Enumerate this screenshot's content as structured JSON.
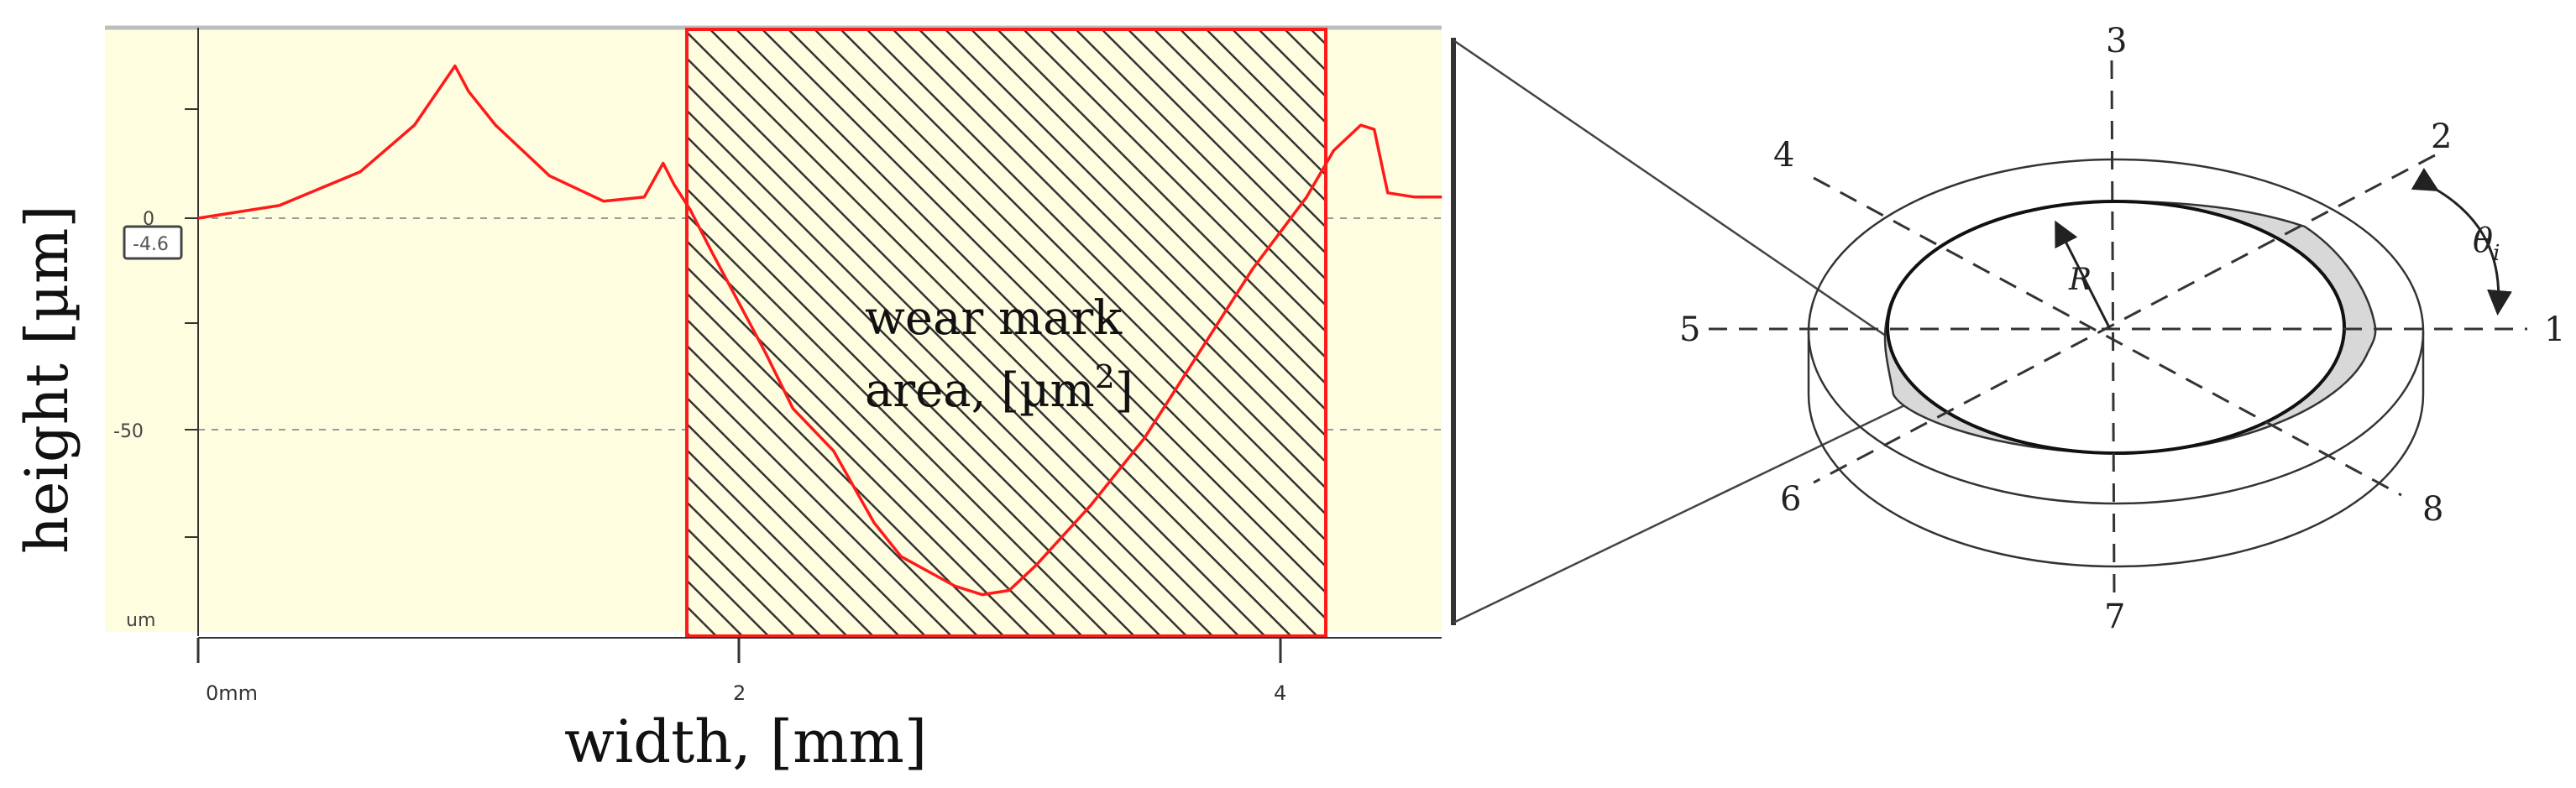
{
  "profile_plot": {
    "ylabel": "height [µm]",
    "xlabel": "width, [mm]",
    "y_unit_label": "um",
    "cursor_value": "-4.6",
    "y_tick_labels": [
      "0",
      "-50"
    ],
    "x_tick_labels": [
      "0mm",
      "2",
      "4"
    ],
    "region_label_line1": "wear mark",
    "region_label_line2_prefix": "area, [µm",
    "region_label_superscript": "2",
    "region_label_line2_suffix": "]",
    "colors": {
      "background": "#fffde0",
      "profile": "#ff1a1a",
      "region_border": "#ff1a1a",
      "hatch": "#333333"
    }
  },
  "chart_data": {
    "type": "line",
    "xlabel": "width, [mm]",
    "ylabel": "height [µm]",
    "xlim": [
      0,
      4.6
    ],
    "ylim": [
      -95,
      45
    ],
    "xticks": [
      0,
      2,
      4
    ],
    "yticks": [
      0,
      -50
    ],
    "grid": "dashed horizontal at 0 and -50",
    "highlighted_region": {
      "x_start": 1.8,
      "x_end": 4.15,
      "label": "wear mark area, [µm2]"
    },
    "series": [
      {
        "x": [
          0,
          0.3,
          0.6,
          0.8,
          0.95,
          1.0,
          1.1,
          1.3,
          1.5,
          1.65,
          1.72,
          1.76,
          1.82,
          1.9,
          2.0,
          2.1,
          2.2,
          2.35,
          2.5,
          2.6,
          2.8,
          2.9,
          3.0,
          3.1,
          3.3,
          3.5,
          3.7,
          3.9,
          4.1,
          4.2,
          4.3,
          4.35,
          4.4,
          4.5,
          4.6
        ],
        "y": [
          0,
          3,
          11,
          22,
          36,
          30,
          22,
          10,
          4,
          5,
          13,
          8,
          2,
          -8,
          -20,
          -32,
          -45,
          -55,
          -72,
          -80,
          -87,
          -89,
          -88,
          -82,
          -68,
          -52,
          -32,
          -12,
          5,
          16,
          22,
          21,
          6,
          5,
          5
        ]
      }
    ]
  },
  "ring_diagram": {
    "radial_labels": [
      "1",
      "2",
      "3",
      "4",
      "5",
      "6",
      "7",
      "8"
    ],
    "radius_label": "R",
    "angle_label": "θ",
    "angle_subscript": "i",
    "colors": {
      "wear": "#d8d8d8",
      "lines": "#333333"
    }
  }
}
